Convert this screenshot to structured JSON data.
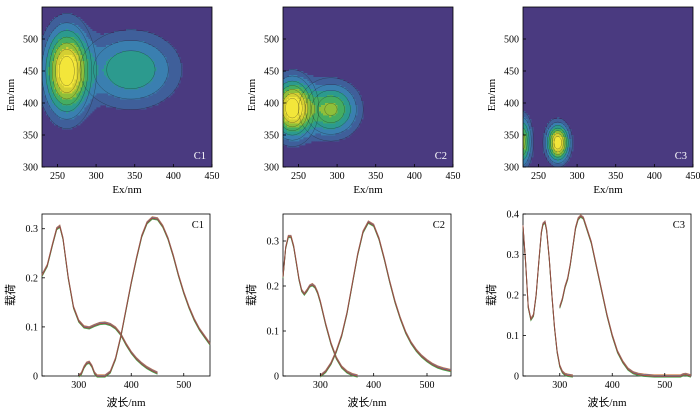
{
  "colors": {
    "contour_background": "#4a3a80",
    "contour_levels": [
      "#4a3a80",
      "#3f5f9a",
      "#3a7fb0",
      "#2c9a8e",
      "#44ad62",
      "#8fbf3a",
      "#d4cf33",
      "#f3e63a"
    ],
    "line_series": [
      "#cc6b2e",
      "#4b5fb8",
      "#d8b020",
      "#7c3d9a",
      "#3c9e3c",
      "#a04040"
    ]
  },
  "chart_data": [
    {
      "type": "heatmap",
      "panel_label": "C1",
      "xlabel": "Ex/nm",
      "ylabel": "Em/nm",
      "xlim": [
        230,
        450
      ],
      "ylim": [
        300,
        550
      ],
      "xticks": [
        250,
        300,
        350,
        400,
        450
      ],
      "yticks": [
        300,
        350,
        400,
        450,
        500
      ],
      "peaks": [
        {
          "ex": 262,
          "em": 450,
          "intensity": 1.0,
          "sx": 18,
          "sy": 42
        },
        {
          "ex": 345,
          "em": 452,
          "intensity": 0.45,
          "sx": 38,
          "sy": 36
        }
      ]
    },
    {
      "type": "heatmap",
      "panel_label": "C2",
      "xlabel": "Ex/nm",
      "ylabel": "Em/nm",
      "xlim": [
        230,
        450
      ],
      "ylim": [
        300,
        550
      ],
      "xticks": [
        250,
        300,
        350,
        400,
        450
      ],
      "yticks": [
        300,
        350,
        400,
        450,
        500
      ],
      "peaks": [
        {
          "ex": 242,
          "em": 392,
          "intensity": 1.0,
          "sx": 16,
          "sy": 28
        },
        {
          "ex": 292,
          "em": 390,
          "intensity": 0.62,
          "sx": 22,
          "sy": 26
        }
      ]
    },
    {
      "type": "heatmap",
      "panel_label": "C3",
      "xlabel": "Ex/nm",
      "ylabel": "Em/nm",
      "xlim": [
        230,
        450
      ],
      "ylim": [
        300,
        550
      ],
      "xticks": [
        250,
        300,
        350,
        400,
        450
      ],
      "yticks": [
        300,
        350,
        400,
        450,
        500
      ],
      "peaks": [
        {
          "ex": 275,
          "em": 338,
          "intensity": 1.0,
          "sx": 9,
          "sy": 18
        },
        {
          "ex": 228,
          "em": 340,
          "intensity": 0.7,
          "sx": 8,
          "sy": 24
        }
      ]
    },
    {
      "type": "line",
      "panel_label": "C1",
      "xlabel": "波长/nm",
      "ylabel": "载荷",
      "xlim": [
        230,
        550
      ],
      "ylim": [
        0,
        0.33
      ],
      "xticks": [
        300,
        400,
        500
      ],
      "yticks": [
        0,
        0.1,
        0.2,
        0.3
      ],
      "excitation": {
        "x": [
          230,
          240,
          250,
          258,
          264,
          270,
          280,
          290,
          300,
          310,
          320,
          330,
          340,
          350,
          360,
          370,
          380,
          390,
          400,
          410,
          420,
          430,
          440,
          450
        ],
        "y": [
          0.205,
          0.225,
          0.268,
          0.3,
          0.305,
          0.28,
          0.2,
          0.14,
          0.112,
          0.1,
          0.098,
          0.103,
          0.107,
          0.108,
          0.105,
          0.098,
          0.085,
          0.065,
          0.048,
          0.035,
          0.025,
          0.017,
          0.011,
          0.006
        ]
      },
      "emission": {
        "x": [
          300,
          305,
          310,
          315,
          320,
          325,
          330,
          335,
          340,
          350,
          360,
          370,
          380,
          390,
          400,
          410,
          420,
          430,
          440,
          450,
          460,
          470,
          480,
          490,
          500,
          510,
          520,
          530,
          540,
          550
        ],
        "y": [
          0.0,
          0.005,
          0.018,
          0.026,
          0.028,
          0.02,
          0.006,
          0.0,
          0.0,
          0.0,
          0.008,
          0.035,
          0.08,
          0.135,
          0.19,
          0.24,
          0.285,
          0.312,
          0.322,
          0.32,
          0.305,
          0.28,
          0.245,
          0.205,
          0.17,
          0.14,
          0.115,
          0.095,
          0.08,
          0.065
        ]
      }
    },
    {
      "type": "line",
      "panel_label": "C2",
      "xlabel": "波长/nm",
      "ylabel": "载荷",
      "xlim": [
        230,
        545
      ],
      "ylim": [
        0,
        0.36
      ],
      "xticks": [
        300,
        400,
        500
      ],
      "yticks": [
        0,
        0.1,
        0.2,
        0.3
      ],
      "excitation": {
        "x": [
          230,
          235,
          240,
          245,
          250,
          255,
          260,
          265,
          270,
          275,
          280,
          285,
          290,
          295,
          300,
          305,
          310,
          320,
          330,
          340,
          350,
          360,
          370
        ],
        "y": [
          0.22,
          0.285,
          0.31,
          0.31,
          0.288,
          0.252,
          0.215,
          0.19,
          0.182,
          0.19,
          0.2,
          0.203,
          0.198,
          0.185,
          0.165,
          0.14,
          0.115,
          0.072,
          0.04,
          0.02,
          0.009,
          0.003,
          0.0
        ]
      },
      "emission": {
        "x": [
          300,
          310,
          320,
          330,
          340,
          350,
          360,
          370,
          380,
          390,
          400,
          410,
          420,
          430,
          440,
          450,
          460,
          470,
          480,
          490,
          500,
          510,
          520,
          530,
          545
        ],
        "y": [
          0.0,
          0.01,
          0.028,
          0.055,
          0.09,
          0.14,
          0.205,
          0.27,
          0.32,
          0.342,
          0.335,
          0.305,
          0.26,
          0.21,
          0.165,
          0.128,
          0.097,
          0.074,
          0.057,
          0.044,
          0.034,
          0.026,
          0.02,
          0.016,
          0.012
        ]
      }
    },
    {
      "type": "line",
      "panel_label": "C3",
      "xlabel": "波长/nm",
      "ylabel": "载荷",
      "xlim": [
        230,
        550
      ],
      "ylim": [
        0,
        0.4
      ],
      "xticks": [
        300,
        400,
        500
      ],
      "yticks": [
        0,
        0.1,
        0.2,
        0.3,
        0.4
      ],
      "excitation": {
        "x": [
          230,
          235,
          240,
          245,
          250,
          255,
          260,
          265,
          268,
          272,
          275,
          280,
          285,
          290,
          295,
          300,
          305,
          310,
          315,
          320,
          325
        ],
        "y": [
          0.37,
          0.28,
          0.17,
          0.14,
          0.15,
          0.2,
          0.28,
          0.355,
          0.375,
          0.38,
          0.36,
          0.29,
          0.2,
          0.12,
          0.06,
          0.025,
          0.01,
          0.004,
          0.002,
          0.001,
          0.0
        ]
      },
      "emission": {
        "x": [
          300,
          305,
          310,
          315,
          320,
          325,
          330,
          335,
          340,
          345,
          350,
          360,
          370,
          380,
          390,
          400,
          410,
          420,
          430,
          440,
          450,
          460,
          470,
          480,
          490,
          500,
          510,
          520,
          530,
          535,
          540,
          545,
          550
        ],
        "y": [
          0.17,
          0.19,
          0.22,
          0.24,
          0.275,
          0.32,
          0.365,
          0.388,
          0.395,
          0.39,
          0.37,
          0.33,
          0.27,
          0.21,
          0.15,
          0.1,
          0.06,
          0.035,
          0.017,
          0.008,
          0.004,
          0.002,
          0.001,
          0.0,
          0.0,
          0.0,
          0.0,
          0.0,
          0.0,
          0.003,
          0.004,
          0.002,
          0.0
        ]
      }
    }
  ]
}
